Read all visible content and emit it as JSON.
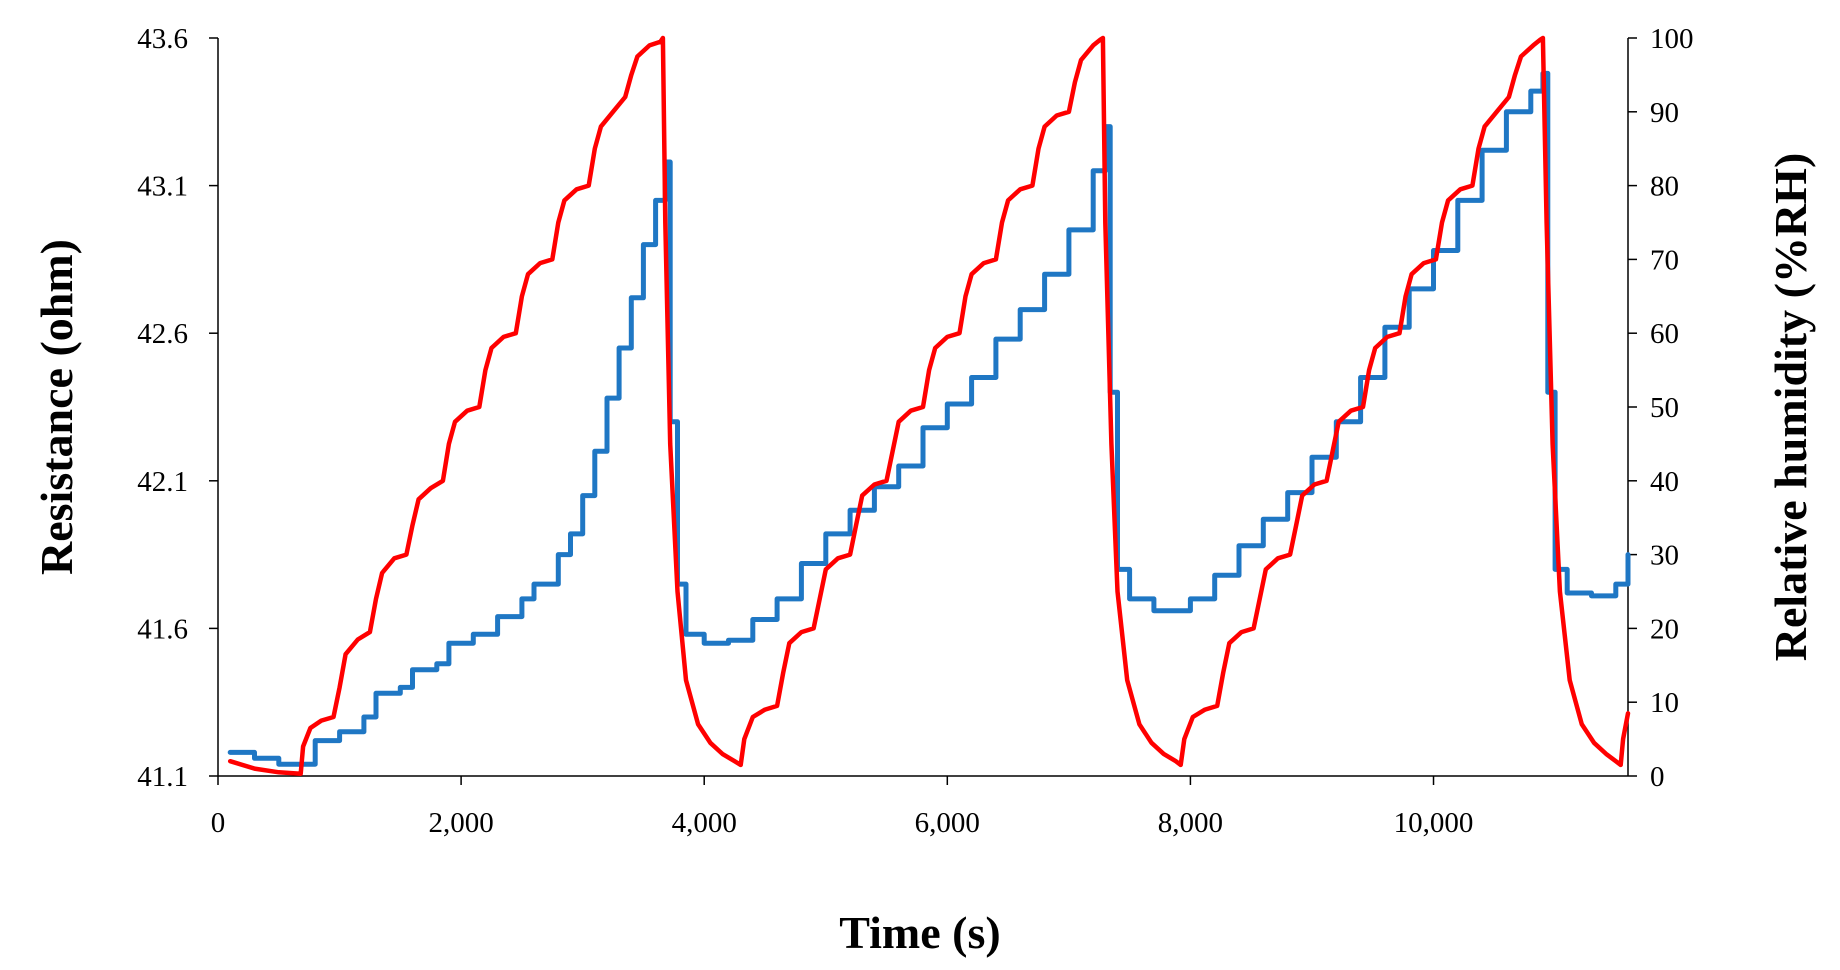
{
  "chart_data": {
    "type": "line",
    "title": "",
    "xlabel": "Time (s)",
    "ylabel_left": "Resistance (ohm)",
    "ylabel_right": "Relative humidity (%RH)",
    "xlim": [
      0,
      11600
    ],
    "ylim_left": [
      41.1,
      43.6
    ],
    "ylim_right": [
      0,
      100
    ],
    "x_ticks": [
      0,
      2000,
      4000,
      6000,
      8000,
      10000
    ],
    "x_tick_labels": [
      "0",
      "2,000",
      "4,000",
      "6,000",
      "8,000",
      "10,000"
    ],
    "y_left_ticks": [
      41.1,
      41.6,
      42.1,
      42.6,
      43.1,
      43.6
    ],
    "y_left_tick_labels": [
      "41.1",
      "41.6",
      "42.1",
      "42.6",
      "43.1",
      "43.6"
    ],
    "y_right_ticks": [
      0,
      10,
      20,
      30,
      40,
      50,
      60,
      70,
      80,
      90,
      100
    ],
    "y_right_tick_labels": [
      "0",
      "10",
      "20",
      "30",
      "40",
      "50",
      "60",
      "70",
      "80",
      "90",
      "100"
    ],
    "grid": false,
    "legend": "none",
    "series": [
      {
        "name": "Resistance",
        "axis": "left",
        "color": "#1f77c4",
        "points": [
          [
            100,
            41.18
          ],
          [
            300,
            41.16
          ],
          [
            500,
            41.14
          ],
          [
            700,
            41.14
          ],
          [
            800,
            41.22
          ],
          [
            1000,
            41.25
          ],
          [
            1200,
            41.3
          ],
          [
            1300,
            41.38
          ],
          [
            1500,
            41.4
          ],
          [
            1600,
            41.46
          ],
          [
            1800,
            41.48
          ],
          [
            1900,
            41.55
          ],
          [
            2100,
            41.58
          ],
          [
            2300,
            41.64
          ],
          [
            2500,
            41.7
          ],
          [
            2600,
            41.75
          ],
          [
            2800,
            41.85
          ],
          [
            2900,
            41.92
          ],
          [
            3000,
            42.05
          ],
          [
            3100,
            42.2
          ],
          [
            3200,
            42.38
          ],
          [
            3300,
            42.55
          ],
          [
            3400,
            42.72
          ],
          [
            3500,
            42.9
          ],
          [
            3600,
            43.05
          ],
          [
            3680,
            43.18
          ],
          [
            3720,
            42.3
          ],
          [
            3780,
            41.75
          ],
          [
            3850,
            41.58
          ],
          [
            4000,
            41.55
          ],
          [
            4200,
            41.56
          ],
          [
            4400,
            41.63
          ],
          [
            4600,
            41.7
          ],
          [
            4800,
            41.82
          ],
          [
            5000,
            41.92
          ],
          [
            5200,
            42.0
          ],
          [
            5400,
            42.08
          ],
          [
            5600,
            42.15
          ],
          [
            5800,
            42.28
          ],
          [
            6000,
            42.36
          ],
          [
            6200,
            42.45
          ],
          [
            6400,
            42.58
          ],
          [
            6600,
            42.68
          ],
          [
            6800,
            42.8
          ],
          [
            7000,
            42.95
          ],
          [
            7200,
            43.15
          ],
          [
            7300,
            43.3
          ],
          [
            7340,
            42.4
          ],
          [
            7400,
            41.8
          ],
          [
            7500,
            41.7
          ],
          [
            7700,
            41.66
          ],
          [
            8000,
            41.7
          ],
          [
            8200,
            41.78
          ],
          [
            8400,
            41.88
          ],
          [
            8600,
            41.97
          ],
          [
            8800,
            42.06
          ],
          [
            9000,
            42.18
          ],
          [
            9200,
            42.3
          ],
          [
            9400,
            42.45
          ],
          [
            9600,
            42.62
          ],
          [
            9800,
            42.75
          ],
          [
            10000,
            42.88
          ],
          [
            10200,
            43.05
          ],
          [
            10400,
            43.22
          ],
          [
            10600,
            43.35
          ],
          [
            10800,
            43.42
          ],
          [
            10900,
            43.48
          ],
          [
            10940,
            42.4
          ],
          [
            11000,
            41.8
          ],
          [
            11100,
            41.72
          ],
          [
            11300,
            41.71
          ],
          [
            11500,
            41.75
          ],
          [
            11600,
            41.85
          ]
        ]
      },
      {
        "name": "Relative humidity",
        "axis": "right",
        "color": "#ff0000",
        "points": [
          [
            100,
            2
          ],
          [
            300,
            1
          ],
          [
            500,
            0.5
          ],
          [
            680,
            0.3
          ],
          [
            700,
            4
          ],
          [
            760,
            6.5
          ],
          [
            850,
            7.5
          ],
          [
            950,
            8
          ],
          [
            1000,
            12
          ],
          [
            1050,
            16.5
          ],
          [
            1150,
            18.5
          ],
          [
            1250,
            19.5
          ],
          [
            1300,
            24
          ],
          [
            1350,
            27.5
          ],
          [
            1450,
            29.5
          ],
          [
            1550,
            30
          ],
          [
            1600,
            34
          ],
          [
            1650,
            37.5
          ],
          [
            1750,
            39
          ],
          [
            1850,
            40
          ],
          [
            1900,
            45
          ],
          [
            1950,
            48
          ],
          [
            2050,
            49.5
          ],
          [
            2150,
            50
          ],
          [
            2200,
            55
          ],
          [
            2250,
            58
          ],
          [
            2350,
            59.5
          ],
          [
            2450,
            60
          ],
          [
            2500,
            65
          ],
          [
            2550,
            68
          ],
          [
            2650,
            69.5
          ],
          [
            2750,
            70
          ],
          [
            2800,
            75
          ],
          [
            2850,
            78
          ],
          [
            2950,
            79.5
          ],
          [
            3050,
            80
          ],
          [
            3100,
            85
          ],
          [
            3150,
            88
          ],
          [
            3250,
            90
          ],
          [
            3350,
            92
          ],
          [
            3400,
            95
          ],
          [
            3450,
            97.5
          ],
          [
            3550,
            99
          ],
          [
            3640,
            99.5
          ],
          [
            3660,
            100
          ],
          [
            3680,
            75
          ],
          [
            3720,
            45
          ],
          [
            3780,
            25
          ],
          [
            3850,
            13
          ],
          [
            3950,
            7
          ],
          [
            4050,
            4.5
          ],
          [
            4150,
            3
          ],
          [
            4250,
            2
          ],
          [
            4300,
            1.5
          ],
          [
            4330,
            5
          ],
          [
            4400,
            8
          ],
          [
            4500,
            9
          ],
          [
            4600,
            9.5
          ],
          [
            4650,
            14
          ],
          [
            4700,
            18
          ],
          [
            4800,
            19.5
          ],
          [
            4900,
            20
          ],
          [
            4950,
            24
          ],
          [
            5000,
            28
          ],
          [
            5100,
            29.5
          ],
          [
            5200,
            30
          ],
          [
            5250,
            34
          ],
          [
            5300,
            38
          ],
          [
            5400,
            39.5
          ],
          [
            5500,
            40
          ],
          [
            5550,
            44
          ],
          [
            5600,
            48
          ],
          [
            5700,
            49.5
          ],
          [
            5800,
            50
          ],
          [
            5850,
            55
          ],
          [
            5900,
            58
          ],
          [
            6000,
            59.5
          ],
          [
            6100,
            60
          ],
          [
            6150,
            65
          ],
          [
            6200,
            68
          ],
          [
            6300,
            69.5
          ],
          [
            6400,
            70
          ],
          [
            6450,
            75
          ],
          [
            6500,
            78
          ],
          [
            6600,
            79.5
          ],
          [
            6700,
            80
          ],
          [
            6750,
            85
          ],
          [
            6800,
            88
          ],
          [
            6900,
            89.5
          ],
          [
            7000,
            90
          ],
          [
            7050,
            94
          ],
          [
            7100,
            97
          ],
          [
            7200,
            99
          ],
          [
            7260,
            99.8
          ],
          [
            7280,
            100
          ],
          [
            7300,
            75
          ],
          [
            7350,
            45
          ],
          [
            7400,
            25
          ],
          [
            7480,
            13
          ],
          [
            7580,
            7
          ],
          [
            7680,
            4.5
          ],
          [
            7780,
            3
          ],
          [
            7880,
            2
          ],
          [
            7920,
            1.5
          ],
          [
            7950,
            5
          ],
          [
            8020,
            8
          ],
          [
            8120,
            9
          ],
          [
            8220,
            9.5
          ],
          [
            8270,
            14
          ],
          [
            8320,
            18
          ],
          [
            8420,
            19.5
          ],
          [
            8520,
            20
          ],
          [
            8570,
            24
          ],
          [
            8620,
            28
          ],
          [
            8720,
            29.5
          ],
          [
            8820,
            30
          ],
          [
            8870,
            34
          ],
          [
            8920,
            38
          ],
          [
            9020,
            39.5
          ],
          [
            9120,
            40
          ],
          [
            9170,
            44
          ],
          [
            9220,
            48
          ],
          [
            9320,
            49.5
          ],
          [
            9420,
            50
          ],
          [
            9470,
            55
          ],
          [
            9520,
            58
          ],
          [
            9620,
            59.5
          ],
          [
            9720,
            60
          ],
          [
            9770,
            65
          ],
          [
            9820,
            68
          ],
          [
            9920,
            69.5
          ],
          [
            10020,
            70
          ],
          [
            10070,
            75
          ],
          [
            10120,
            78
          ],
          [
            10220,
            79.5
          ],
          [
            10320,
            80
          ],
          [
            10370,
            85
          ],
          [
            10420,
            88
          ],
          [
            10520,
            90
          ],
          [
            10620,
            92
          ],
          [
            10670,
            95
          ],
          [
            10720,
            97.5
          ],
          [
            10820,
            99
          ],
          [
            10880,
            99.8
          ],
          [
            10900,
            100
          ],
          [
            10930,
            75
          ],
          [
            10980,
            45
          ],
          [
            11040,
            25
          ],
          [
            11120,
            13
          ],
          [
            11220,
            7
          ],
          [
            11320,
            4.5
          ],
          [
            11420,
            3
          ],
          [
            11500,
            2
          ],
          [
            11540,
            1.5
          ],
          [
            11560,
            5
          ],
          [
            11600,
            8.5
          ]
        ]
      }
    ]
  }
}
